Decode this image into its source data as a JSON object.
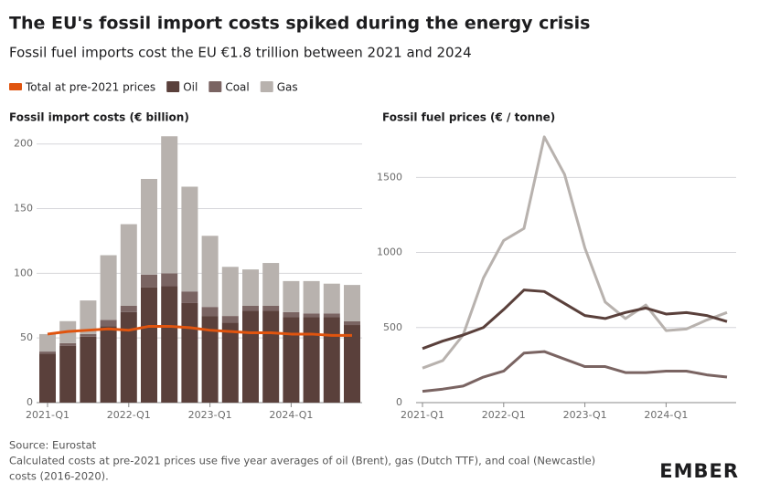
{
  "title": "The EU's fossil import costs spiked during the energy crisis",
  "subtitle": "Fossil fuel imports cost the EU €1.8 trillion between 2021 and 2024",
  "source": "Source: Eurostat",
  "note": [
    "Calculated costs at pre-2021 prices use five year averages of oil (Brent), gas (Dutch TTF), and coal (Newcastle)",
    "costs (2016-2020)."
  ],
  "logo": "EMBER",
  "chart_data": [
    {
      "type": "bar",
      "stacked": true,
      "title": "Fossil import costs (€ billion)",
      "categories": [
        "2021-Q1",
        null,
        null,
        null,
        "2022-Q1",
        null,
        null,
        null,
        "2023-Q1",
        null,
        null,
        null,
        "2024-Q1",
        null,
        null,
        null
      ],
      "series": [
        {
          "name": "Total at pre-2021 prices",
          "type": "line",
          "color": "#e0540f",
          "values": [
            53,
            55,
            56,
            57,
            56,
            59,
            59,
            58,
            56,
            55,
            54,
            54,
            53,
            53,
            52,
            52
          ]
        },
        {
          "name": "Oil",
          "color": "#5a403b",
          "values": [
            38,
            44,
            51,
            59,
            70,
            89,
            90,
            77,
            67,
            62,
            71,
            71,
            66,
            66,
            66,
            60
          ]
        },
        {
          "name": "Coal",
          "color": "#7a6462",
          "values": [
            1.5,
            2,
            2,
            5,
            5,
            10,
            10,
            9,
            7,
            5,
            4,
            4,
            4,
            3,
            3,
            3
          ]
        },
        {
          "name": "Gas",
          "color": "#b8b2ae",
          "values": [
            13.5,
            17,
            26,
            50,
            63,
            74,
            106,
            81,
            55,
            38,
            28,
            33,
            24,
            25,
            23,
            28
          ]
        }
      ],
      "ylim": [
        0,
        209
      ],
      "yticks": [
        0,
        50,
        100,
        150,
        200
      ],
      "grid": true
    },
    {
      "type": "line",
      "title": "Fossil fuel prices (€ / tonne)",
      "categories": [
        "2021-Q1",
        null,
        null,
        null,
        "2022-Q1",
        null,
        null,
        null,
        "2023-Q1",
        null,
        null,
        null,
        "2024-Q1",
        null,
        null,
        null
      ],
      "series": [
        {
          "color": "#b8b2ae",
          "values": [
            230,
            280,
            450,
            830,
            1080,
            1160,
            1770,
            1520,
            1030,
            670,
            560,
            650,
            480,
            490,
            550,
            600
          ]
        },
        {
          "color": "#5a403b",
          "values": [
            360,
            410,
            450,
            500,
            620,
            750,
            740,
            660,
            580,
            560,
            600,
            630,
            590,
            600,
            580,
            540
          ]
        },
        {
          "color": "#7a6462",
          "values": [
            75,
            90,
            110,
            170,
            210,
            330,
            340,
            290,
            240,
            240,
            200,
            200,
            210,
            210,
            185,
            170
          ]
        }
      ],
      "ylim": [
        0,
        1800
      ],
      "yticks": [
        0,
        500,
        1000,
        1500
      ],
      "grid": true
    }
  ]
}
